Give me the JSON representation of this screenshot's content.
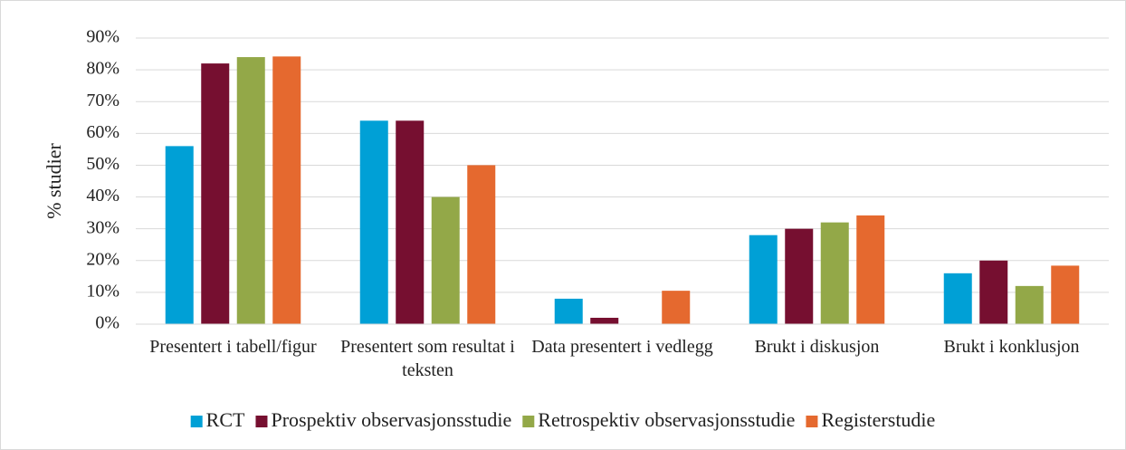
{
  "chart_data": {
    "type": "bar",
    "ylabel": "% studier",
    "categories": [
      "Presentert i tabell/figur",
      "Presentert som resultat i teksten",
      "Data presentert i vedlegg",
      "Brukt i diskusjon",
      "Brukt i konklusjon"
    ],
    "series": [
      {
        "name": "RCT",
        "color": "#00A0D6",
        "values": [
          56,
          64,
          8,
          28,
          16
        ]
      },
      {
        "name": "Prospektiv observasjonsstudie",
        "color": "#760F30",
        "values": [
          82,
          64,
          2,
          30,
          20
        ]
      },
      {
        "name": "Retrospektiv observasjonsstudie",
        "color": "#93A848",
        "values": [
          84,
          40,
          0,
          32,
          12
        ]
      },
      {
        "name": "Registerstudie",
        "color": "#E5692F",
        "values": [
          84.2,
          50,
          10.5,
          34.2,
          18.4
        ]
      }
    ],
    "ylim": [
      0,
      90
    ],
    "yticks": [
      {
        "value": 0,
        "label": "0%"
      },
      {
        "value": 10,
        "label": "10%"
      },
      {
        "value": 20,
        "label": "20%"
      },
      {
        "value": 30,
        "label": "30%"
      },
      {
        "value": 40,
        "label": "40%"
      },
      {
        "value": 50,
        "label": "50%"
      },
      {
        "value": 60,
        "label": "60%"
      },
      {
        "value": 70,
        "label": "70%"
      },
      {
        "value": 80,
        "label": "80%"
      },
      {
        "value": 90,
        "label": "90%"
      }
    ],
    "grid": true,
    "legend": "bottom"
  }
}
